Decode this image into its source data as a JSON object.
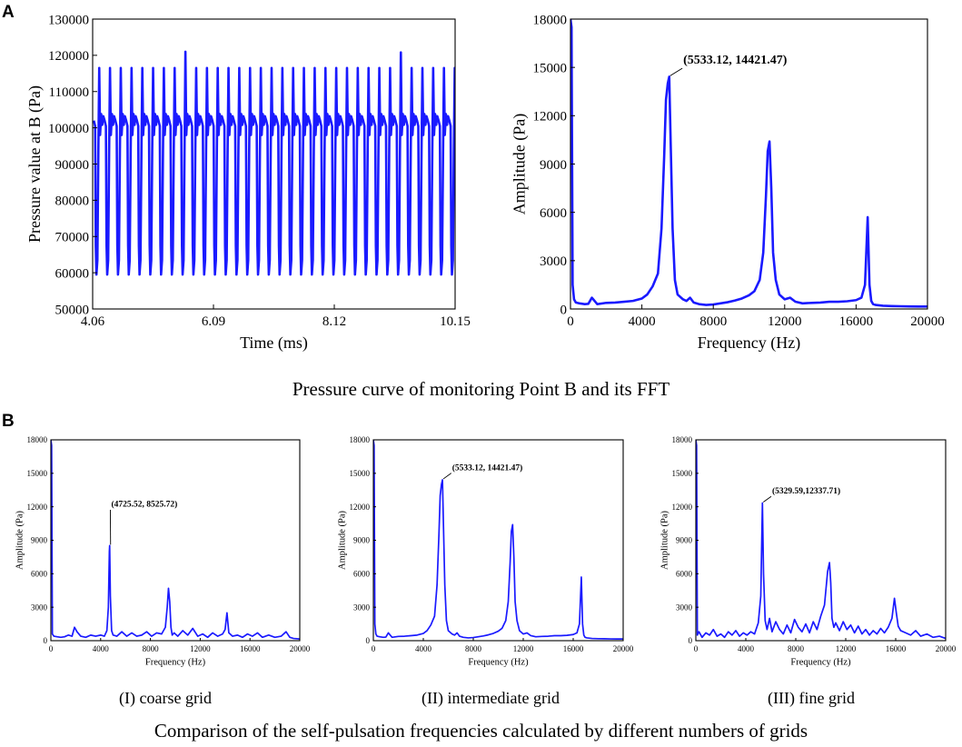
{
  "panel_labels": {
    "a": "A",
    "b": "B"
  },
  "captions": {
    "section_a": "Pressure curve of monitoring Point B and its FFT",
    "section_b": "Comparison of the self-pulsation frequencies calculated by different numbers of grids",
    "sub_coarse": "(I) coarse grid",
    "sub_intermediate": "(II) intermediate grid",
    "sub_fine": "(III) fine grid"
  },
  "colors": {
    "line": "#1a1aff",
    "axis": "#000000",
    "text": "#000000"
  },
  "chart_data": [
    {
      "id": "pressure",
      "type": "line",
      "title": "",
      "xlabel": "Time (ms)",
      "ylabel": "Pressure value at B (Pa)",
      "xlim": [
        4.06,
        10.15
      ],
      "ylim": [
        50000,
        130000
      ],
      "xticks": [
        4.06,
        6.09,
        8.12,
        10.15
      ],
      "xtick_labels": [
        "4.06",
        "6.09",
        "8.12",
        "10.15"
      ],
      "yticks": [
        50000,
        60000,
        70000,
        80000,
        90000,
        100000,
        110000,
        120000,
        130000
      ],
      "ytick_labels": [
        "50000",
        "60000",
        "70000",
        "80000",
        "90000",
        "100000",
        "110000",
        "120000",
        "130000"
      ],
      "signal": {
        "period_ms": 0.181,
        "start_ms": 4.08,
        "baseline": 102000,
        "trough": 59500,
        "peak_typical": 116500,
        "peak_overrides": {
          "8": 121000,
          "28": 120800
        }
      }
    },
    {
      "id": "fft_main",
      "type": "line",
      "title": "",
      "xlabel": "Frequency (Hz)",
      "ylabel": "Amplitude (Pa)",
      "xlim": [
        0,
        20000
      ],
      "ylim": [
        0,
        18000
      ],
      "xticks": [
        0,
        4000,
        8000,
        12000,
        16000,
        20000
      ],
      "xtick_labels": [
        "0",
        "4000",
        "8000",
        "12000",
        "16000",
        "20000"
      ],
      "yticks": [
        0,
        3000,
        6000,
        9000,
        12000,
        15000,
        18000
      ],
      "ytick_labels": [
        "0",
        "3000",
        "6000",
        "9000",
        "12000",
        "15000",
        "18000"
      ],
      "series": [
        {
          "name": "FFT",
          "x": [
            0,
            60,
            120,
            200,
            300,
            500,
            800,
            1000,
            1200,
            1500,
            2000,
            2500,
            3000,
            3500,
            4000,
            4300,
            4600,
            4900,
            5100,
            5250,
            5350,
            5450,
            5533,
            5620,
            5720,
            5850,
            6000,
            6300,
            6500,
            6700,
            6900,
            7200,
            7600,
            8000,
            8400,
            8800,
            9200,
            9600,
            10000,
            10300,
            10600,
            10800,
            10950,
            11050,
            11150,
            11250,
            11350,
            11500,
            11700,
            12000,
            12300,
            12600,
            13000,
            13500,
            14000,
            14500,
            15000,
            15500,
            16000,
            16300,
            16500,
            16650,
            16750,
            16850,
            16950,
            17100,
            17500,
            18000,
            18500,
            19000,
            19500,
            20000
          ],
          "y": [
            18000,
            17500,
            1500,
            600,
            400,
            350,
            300,
            320,
            700,
            300,
            380,
            400,
            450,
            500,
            650,
            900,
            1400,
            2200,
            5000,
            9500,
            13000,
            14000,
            14421,
            10000,
            5000,
            1800,
            900,
            600,
            500,
            700,
            400,
            300,
            250,
            280,
            350,
            420,
            520,
            650,
            850,
            1100,
            1800,
            3500,
            7000,
            9800,
            10400,
            7500,
            3500,
            1800,
            900,
            600,
            700,
            450,
            350,
            380,
            400,
            450,
            450,
            480,
            550,
            700,
            1500,
            5700,
            1500,
            500,
            300,
            250,
            200,
            180,
            170,
            160,
            150,
            150
          ]
        }
      ],
      "annotation": {
        "text": "(5533.12, 14421.47)",
        "x": 5533.12,
        "y": 14421.47
      }
    },
    {
      "id": "fft_coarse",
      "type": "line",
      "title": "",
      "xlabel": "Frequency (Hz)",
      "ylabel": "Amplitude (Pa)",
      "xlim": [
        0,
        20000
      ],
      "ylim": [
        0,
        18000
      ],
      "xticks": [
        0,
        4000,
        8000,
        12000,
        16000,
        20000
      ],
      "xtick_labels": [
        "0",
        "4000",
        "8000",
        "12000",
        "16000",
        "20000"
      ],
      "yticks": [
        0,
        3000,
        6000,
        9000,
        12000,
        15000,
        18000
      ],
      "ytick_labels": [
        "0",
        "3000",
        "6000",
        "9000",
        "12000",
        "15000",
        "18000"
      ],
      "series": [
        {
          "name": "FFT",
          "x": [
            0,
            60,
            120,
            250,
            500,
            800,
            1100,
            1400,
            1700,
            1900,
            2100,
            2400,
            2800,
            3200,
            3600,
            4000,
            4300,
            4500,
            4620,
            4700,
            4725,
            4780,
            4880,
            5000,
            5300,
            5700,
            6100,
            6500,
            6900,
            7300,
            7700,
            8100,
            8500,
            8900,
            9200,
            9350,
            9450,
            9550,
            9650,
            9750,
            9900,
            10200,
            10600,
            11000,
            11400,
            11800,
            12200,
            12600,
            13000,
            13400,
            13800,
            14000,
            14150,
            14300,
            14600,
            15000,
            15400,
            15800,
            16200,
            16600,
            17000,
            17500,
            18000,
            18500,
            18900,
            19200,
            19500,
            20000
          ],
          "y": [
            18000,
            17500,
            600,
            400,
            350,
            300,
            350,
            500,
            400,
            1200,
            800,
            400,
            300,
            500,
            400,
            500,
            400,
            900,
            3000,
            8000,
            8526,
            4000,
            900,
            500,
            400,
            800,
            400,
            700,
            400,
            500,
            800,
            400,
            700,
            600,
            1200,
            3000,
            4700,
            3500,
            1200,
            500,
            700,
            400,
            900,
            500,
            1100,
            400,
            600,
            300,
            700,
            400,
            600,
            1000,
            2500,
            700,
            400,
            500,
            300,
            600,
            400,
            700,
            300,
            500,
            300,
            400,
            800,
            300,
            200,
            150
          ]
        }
      ],
      "annotation": {
        "text": "(4725.52, 8525.72)",
        "x": 4725.52,
        "y": 8525.72
      }
    },
    {
      "id": "fft_intermediate",
      "type": "line",
      "title": "",
      "xlabel": "Frequency (Hz)",
      "ylabel": "Amplitude (Pa)",
      "xlim": [
        0,
        20000
      ],
      "ylim": [
        0,
        18000
      ],
      "xticks": [
        0,
        4000,
        8000,
        12000,
        16000,
        20000
      ],
      "xtick_labels": [
        "0",
        "4000",
        "8000",
        "12000",
        "16000",
        "20000"
      ],
      "yticks": [
        0,
        3000,
        6000,
        9000,
        12000,
        15000,
        18000
      ],
      "ytick_labels": [
        "0",
        "3000",
        "6000",
        "9000",
        "12000",
        "15000",
        "18000"
      ],
      "series": [
        {
          "name": "FFT",
          "x": [
            0,
            60,
            120,
            200,
            300,
            500,
            800,
            1000,
            1200,
            1500,
            2000,
            2500,
            3000,
            3500,
            4000,
            4300,
            4600,
            4900,
            5100,
            5250,
            5350,
            5450,
            5533,
            5620,
            5720,
            5850,
            6000,
            6300,
            6500,
            6700,
            6900,
            7200,
            7600,
            8000,
            8400,
            8800,
            9200,
            9600,
            10000,
            10300,
            10600,
            10800,
            10950,
            11050,
            11150,
            11250,
            11350,
            11500,
            11700,
            12000,
            12300,
            12600,
            13000,
            13500,
            14000,
            14500,
            15000,
            15500,
            16000,
            16300,
            16500,
            16650,
            16750,
            16850,
            16950,
            17100,
            17500,
            18000,
            18500,
            19000,
            19500,
            20000
          ],
          "y": [
            18000,
            17500,
            1500,
            600,
            400,
            350,
            300,
            320,
            700,
            300,
            380,
            400,
            450,
            500,
            650,
            900,
            1400,
            2200,
            5000,
            9500,
            13000,
            14000,
            14421,
            10000,
            5000,
            1800,
            900,
            600,
            500,
            700,
            400,
            300,
            250,
            280,
            350,
            420,
            520,
            650,
            850,
            1100,
            1800,
            3500,
            7000,
            9800,
            10400,
            7500,
            3500,
            1800,
            900,
            600,
            700,
            450,
            350,
            380,
            400,
            450,
            450,
            480,
            550,
            700,
            1500,
            5700,
            1500,
            500,
            300,
            250,
            200,
            180,
            170,
            160,
            150,
            150
          ]
        }
      ],
      "annotation": {
        "text": "(5533.12, 14421.47)",
        "x": 5533.12,
        "y": 14421.47
      }
    },
    {
      "id": "fft_fine",
      "type": "line",
      "title": "",
      "xlabel": "Frequency (Hz)",
      "ylabel": "Amplitude (Pa)",
      "xlim": [
        0,
        20000
      ],
      "ylim": [
        0,
        18000
      ],
      "xticks": [
        0,
        4000,
        8000,
        12000,
        16000,
        20000
      ],
      "xtick_labels": [
        "0",
        "4000",
        "8000",
        "12000",
        "16000",
        "20000"
      ],
      "yticks": [
        0,
        3000,
        6000,
        9000,
        12000,
        15000,
        18000
      ],
      "ytick_labels": [
        "0",
        "3000",
        "6000",
        "9000",
        "12000",
        "15000",
        "18000"
      ],
      "series": [
        {
          "name": "FFT",
          "x": [
            0,
            60,
            120,
            250,
            500,
            800,
            1100,
            1400,
            1700,
            2000,
            2300,
            2600,
            2900,
            3200,
            3500,
            3800,
            4100,
            4400,
            4700,
            5000,
            5200,
            5330,
            5420,
            5550,
            5700,
            5900,
            6100,
            6400,
            6700,
            7000,
            7300,
            7600,
            7900,
            8200,
            8500,
            8800,
            9100,
            9400,
            9700,
            10000,
            10300,
            10550,
            10700,
            10800,
            10900,
            11050,
            11200,
            11500,
            11800,
            12100,
            12400,
            12700,
            13000,
            13300,
            13600,
            13900,
            14200,
            14500,
            14800,
            15100,
            15400,
            15700,
            15900,
            16050,
            16200,
            16400,
            16800,
            17200,
            17600,
            18000,
            18500,
            19000,
            19500,
            20000
          ],
          "y": [
            18000,
            17500,
            500,
            800,
            300,
            700,
            500,
            1000,
            400,
            600,
            300,
            800,
            500,
            900,
            400,
            700,
            500,
            800,
            600,
            1600,
            4000,
            12338,
            6000,
            1800,
            1000,
            2000,
            800,
            1700,
            1000,
            600,
            1400,
            700,
            1900,
            1200,
            800,
            1500,
            700,
            1700,
            1000,
            2200,
            3200,
            6200,
            7000,
            5200,
            2000,
            1200,
            1600,
            900,
            1700,
            1000,
            1400,
            700,
            1300,
            600,
            1000,
            500,
            900,
            600,
            1100,
            700,
            1200,
            2000,
            3800,
            2500,
            1300,
            900,
            700,
            500,
            900,
            400,
            600,
            300,
            400,
            200
          ]
        }
      ],
      "annotation": {
        "text": "(5329.59,12337.71)",
        "x": 5329.59,
        "y": 12337.71
      }
    }
  ]
}
